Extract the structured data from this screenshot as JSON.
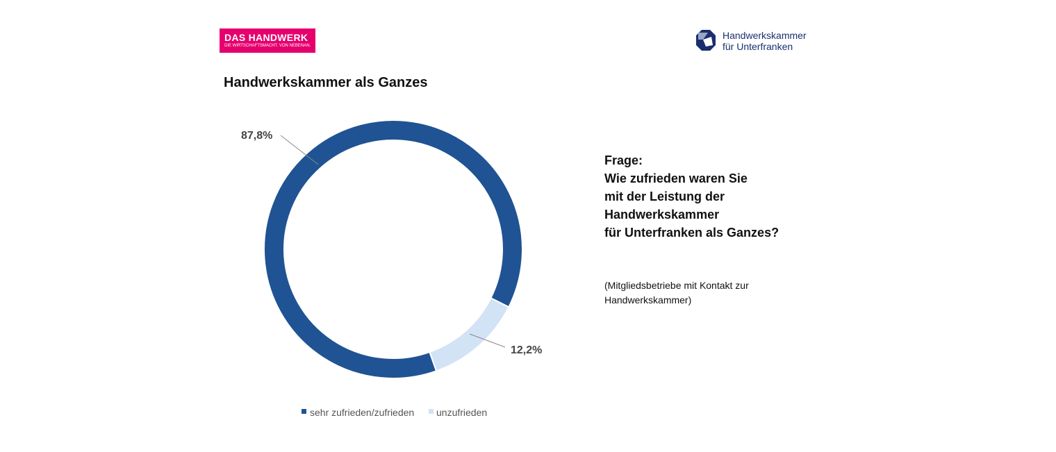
{
  "logos": {
    "left": {
      "line1": "DAS HANDWERK",
      "line2": "DIE WIRTSCHAFTSMACHT. VON NEBENAN.",
      "color": "#e5006d"
    },
    "right": {
      "line1": "Handwerkskammer",
      "line2": "für Unterfranken"
    }
  },
  "question": {
    "lines": [
      "Frage:",
      "Wie zufrieden waren Sie",
      "mit der Leistung der",
      "Handwerkskammer",
      "für Unterfranken als Ganzes?"
    ],
    "note": "(Mitgliedsbetriebe mit Kontakt zur Handwerkskammer)"
  },
  "chart_data": {
    "type": "pie",
    "variant": "donut",
    "title": "Handwerkskammer als Ganzes",
    "categories": [
      "sehr zufrieden/zufrieden",
      "unzufrieden"
    ],
    "values": [
      87.8,
      12.2
    ],
    "data_labels": [
      "87,8%",
      "12,2%"
    ],
    "colors": [
      "#1f5393",
      "#d2e3f5"
    ],
    "legend": "bottom"
  }
}
